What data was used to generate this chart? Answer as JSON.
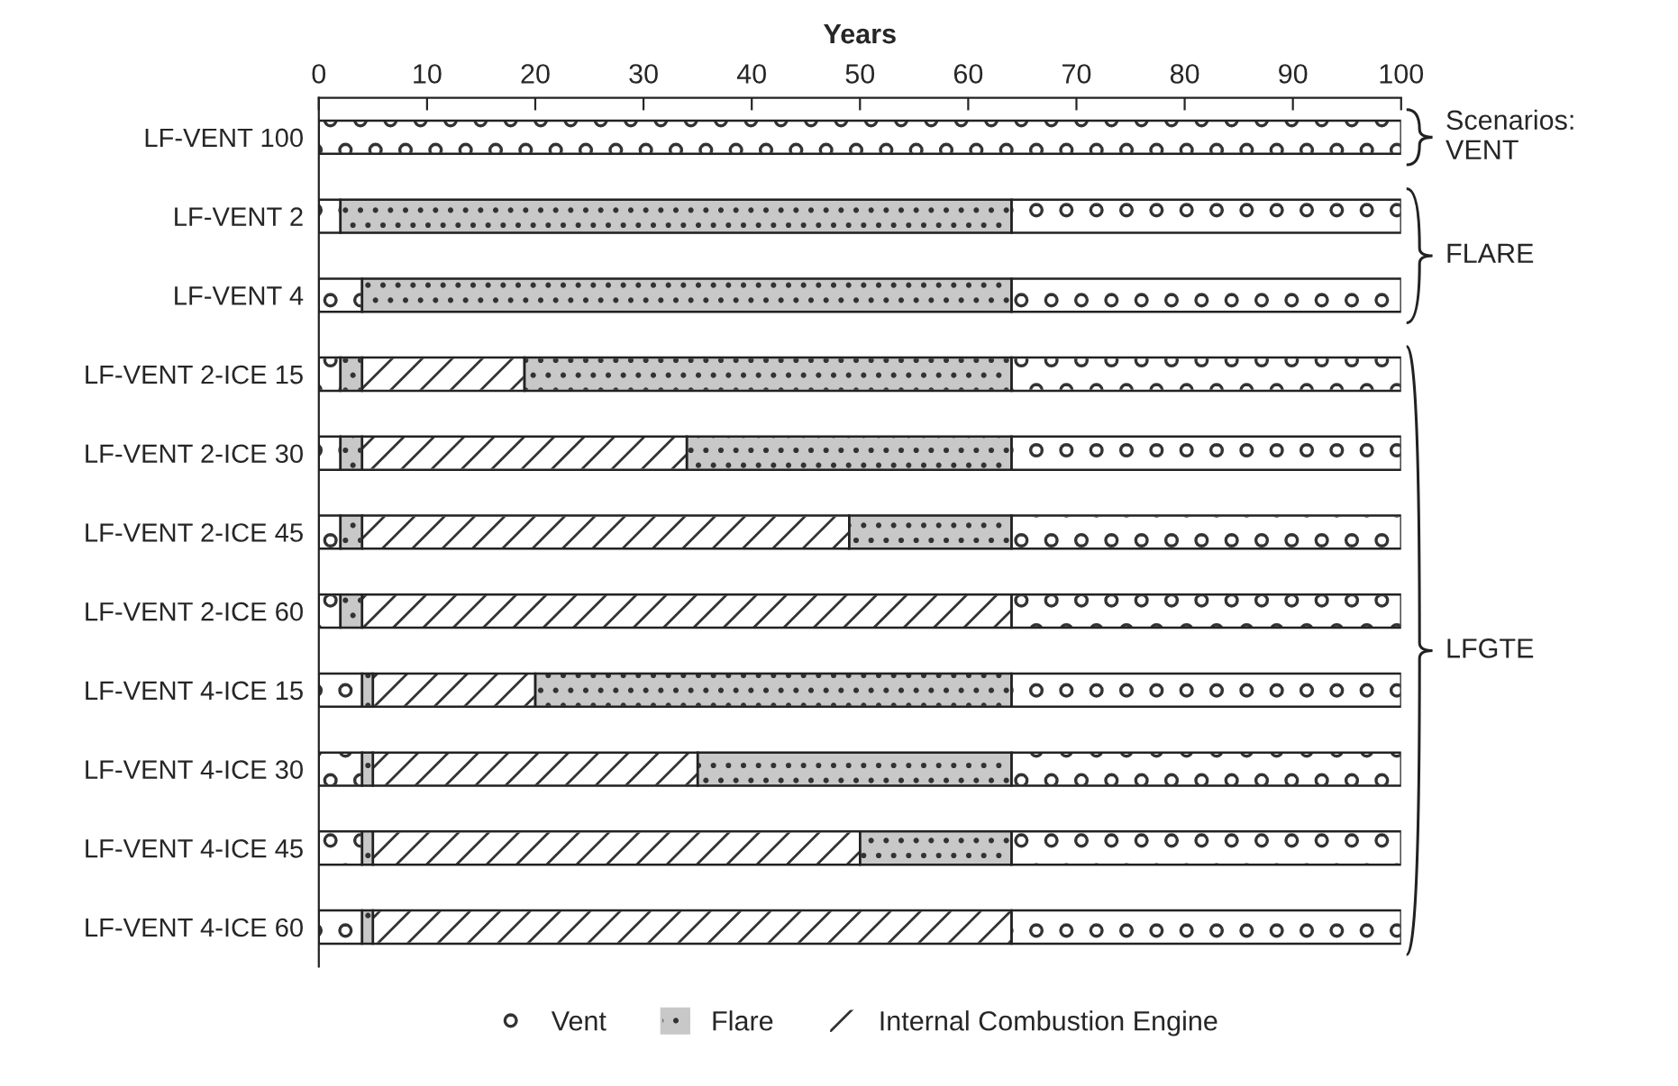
{
  "chart_data": {
    "type": "bar",
    "orientation": "horizontal",
    "stacked": true,
    "xlabel": "Years",
    "categories": [
      "LF-VENT 100",
      "LF-VENT 2",
      "LF-VENT 4",
      "LF-VENT 2-ICE 15",
      "LF-VENT 2-ICE 30",
      "LF-VENT 2-ICE 45",
      "LF-VENT 2-ICE 60",
      "LF-VENT 4-ICE 15",
      "LF-VENT 4-ICE 30",
      "LF-VENT 4-ICE 45",
      "LF-VENT 4-ICE 60"
    ],
    "series": [
      {
        "name": "Vent",
        "color": "#ffffff",
        "values": [
          100,
          2,
          4,
          2,
          2,
          2,
          2,
          4,
          4,
          4,
          4
        ]
      },
      {
        "name": "Flare",
        "color": "#c8c8c8",
        "values": [
          0,
          62,
          60,
          2,
          2,
          2,
          2,
          1,
          1,
          1,
          1
        ]
      },
      {
        "name": "Internal Combustion Engine",
        "color": "#ffffff",
        "values": [
          0,
          0,
          0,
          15,
          30,
          45,
          60,
          15,
          30,
          45,
          59
        ]
      },
      {
        "color": "#c8c8c8",
        "values": [
          0,
          0,
          0,
          45,
          30,
          15,
          0,
          44,
          29,
          14,
          0
        ]
      },
      {
        "color": "#ffffff",
        "values": [
          0,
          36,
          36,
          36,
          36,
          36,
          36,
          36,
          36,
          36,
          36
        ]
      }
    ],
    "xlim": [
      0,
      100
    ],
    "xticks": [
      0,
      10,
      20,
      30,
      40,
      50,
      60,
      70,
      80,
      90,
      100
    ],
    "annotations": [
      "Scenarios:\nVENT",
      "FLARE",
      "LFGTE"
    ],
    "legend": "bottom",
    "grid": false
  }
}
